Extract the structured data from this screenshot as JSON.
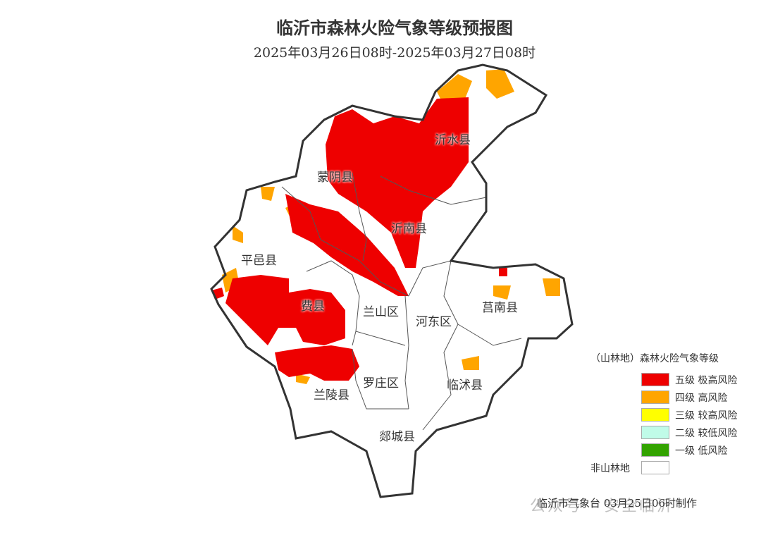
{
  "title": "临沂市森林火险气象等级预报图",
  "subtitle": "2025年03月26日08时-2025年03月27日08时",
  "counties": [
    {
      "name": "沂水县"
    },
    {
      "name": "蒙阴县"
    },
    {
      "name": "沂南县"
    },
    {
      "name": "平邑县"
    },
    {
      "name": "费县"
    },
    {
      "name": "兰山区"
    },
    {
      "name": "河东区"
    },
    {
      "name": "莒南县"
    },
    {
      "name": "罗庄区"
    },
    {
      "name": "临沭县"
    },
    {
      "name": "兰陵县"
    },
    {
      "name": "郯城县"
    }
  ],
  "legend": {
    "title": "（山林地）森林火险气象等级",
    "levels": [
      {
        "label": "五级 极高风险",
        "color": "#ee0000"
      },
      {
        "label": "四级 高风险",
        "color": "#ffa500"
      },
      {
        "label": "三级 较高风险",
        "color": "#ffff00"
      },
      {
        "label": "二级 较低风险",
        "color": "#c0fbe8"
      },
      {
        "label": "一级 低风险",
        "color": "#33a300"
      }
    ],
    "non_forest": {
      "label": "非山林地",
      "color": "#ffffff"
    }
  },
  "footer": "临沂市气象台 03月25日06时制作",
  "watermark": "公众号 · 安全临沂"
}
